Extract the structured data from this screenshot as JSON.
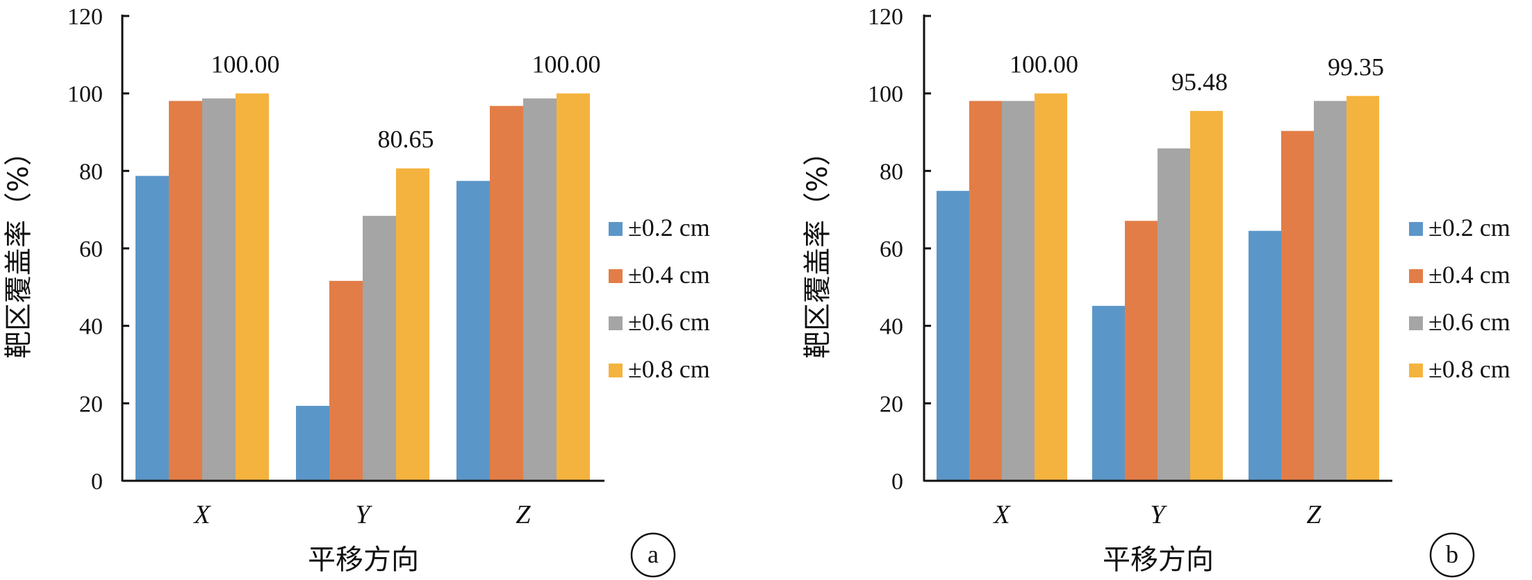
{
  "chart_data": [
    {
      "type": "bar",
      "panel": "a",
      "categories": [
        "X",
        "Y",
        "Z"
      ],
      "series": [
        {
          "name": "±0.2 cm",
          "values": [
            78.71,
            19.35,
            77.42
          ]
        },
        {
          "name": "±0.4 cm",
          "values": [
            98.06,
            51.61,
            96.77
          ]
        },
        {
          "name": "±0.6 cm",
          "values": [
            98.71,
            68.39,
            98.71
          ]
        },
        {
          "name": "±0.8 cm",
          "values": [
            100.0,
            80.65,
            100.0
          ]
        }
      ],
      "data_labels": [
        {
          "category": "X",
          "series": "±0.8 cm",
          "text": "100.00"
        },
        {
          "category": "Y",
          "series": "±0.8 cm",
          "text": "80.65"
        },
        {
          "category": "Z",
          "series": "±0.8 cm",
          "text": "100.00"
        }
      ],
      "xlabel": "平移方向",
      "ylabel": "靶区覆盖率（%）",
      "ylim": [
        0,
        120
      ],
      "yticks": [
        "0",
        "20",
        "40",
        "60",
        "80",
        "100",
        "120"
      ],
      "legend_position": "right",
      "grid": false
    },
    {
      "type": "bar",
      "panel": "b",
      "categories": [
        "X",
        "Y",
        "Z"
      ],
      "series": [
        {
          "name": "±0.2 cm",
          "values": [
            74.84,
            45.16,
            64.52
          ]
        },
        {
          "name": "±0.4 cm",
          "values": [
            98.06,
            67.1,
            90.32
          ]
        },
        {
          "name": "±0.6 cm",
          "values": [
            98.06,
            85.81,
            98.06
          ]
        },
        {
          "name": "±0.8 cm",
          "values": [
            100.0,
            95.48,
            99.35
          ]
        }
      ],
      "data_labels": [
        {
          "category": "X",
          "series": "±0.8 cm",
          "text": "100.00"
        },
        {
          "category": "Y",
          "series": "±0.8 cm",
          "text": "95.48"
        },
        {
          "category": "Z",
          "series": "±0.8 cm",
          "text": "99.35"
        }
      ],
      "xlabel": "平移方向",
      "ylabel": "靶区覆盖率（%）",
      "ylim": [
        0,
        120
      ],
      "yticks": [
        "0",
        "20",
        "40",
        "60",
        "80",
        "100",
        "120"
      ],
      "legend_position": "right",
      "grid": false
    }
  ],
  "colors": [
    "#5b96c8",
    "#e37d47",
    "#a5a5a5",
    "#f4b33e"
  ]
}
